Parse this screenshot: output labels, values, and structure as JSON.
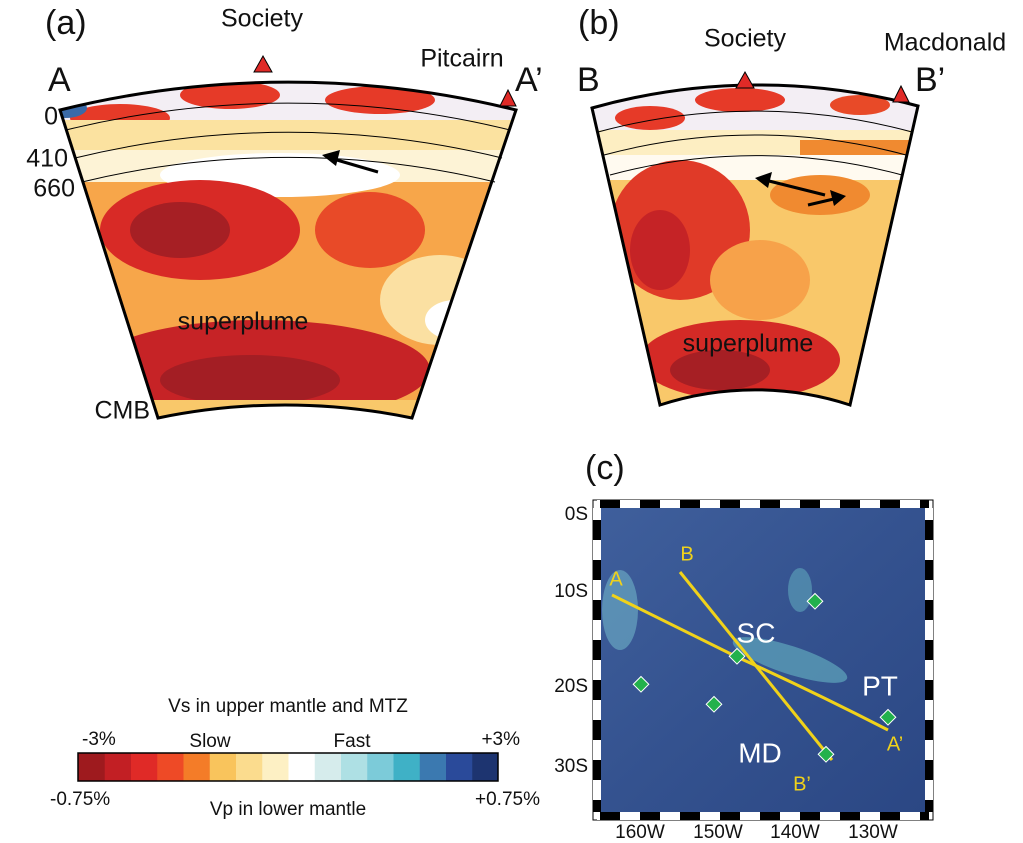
{
  "panel_a": {
    "label": "(a)",
    "start": "A",
    "end": "A’",
    "volcano_1": "Society",
    "volcano_2": "Pitcairn",
    "depths": [
      "0",
      "410",
      "660"
    ],
    "bottom": "CMB",
    "feature": "superplume"
  },
  "panel_b": {
    "label": "(b)",
    "start": "B",
    "end": "B’",
    "volcano_1": "Society",
    "volcano_2": "Macdonald",
    "feature": "superplume"
  },
  "colorbar": {
    "title": "Vs in upper mantle and MTZ",
    "left_top": "-3%",
    "slow": "Slow",
    "fast": "Fast",
    "right_top": "+3%",
    "left_bottom": "-0.75%",
    "right_bottom": "+0.75%",
    "subtitle": "Vp in lower mantle",
    "colors": [
      "#9e1a1e",
      "#c21f24",
      "#e02a27",
      "#ee4a26",
      "#f47c28",
      "#f9c45c",
      "#fbdc8e",
      "#fdf0c4",
      "#ffffff",
      "#d6ecec",
      "#aee0e4",
      "#7ccbd9",
      "#3fb1c6",
      "#3b79b0",
      "#2a4a9a",
      "#1d3470"
    ]
  },
  "map": {
    "label": "(c)",
    "yticks": [
      "0S",
      "10S",
      "20S",
      "30S"
    ],
    "xticks": [
      "160W",
      "150W",
      "140W",
      "130W"
    ],
    "profile_a_start": "A",
    "profile_a_end": "A’",
    "profile_b_start": "B",
    "profile_b_end": "B’",
    "site_sc": "SC",
    "site_pt": "PT",
    "site_md": "MD"
  }
}
